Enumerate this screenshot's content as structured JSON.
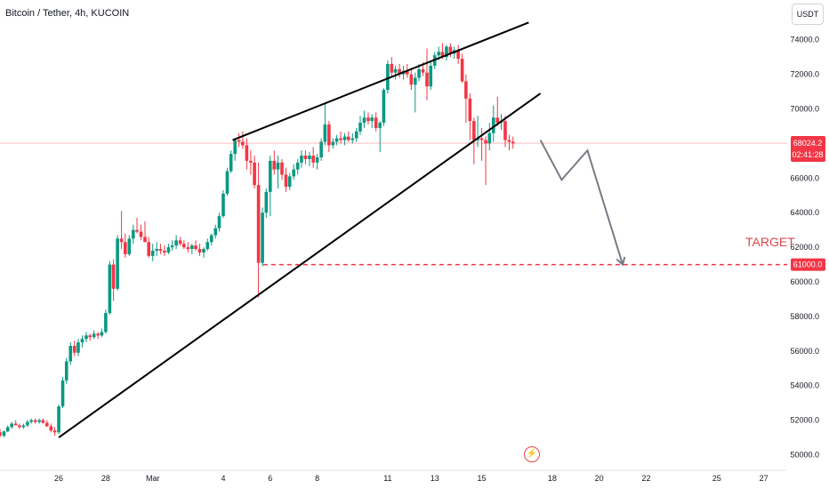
{
  "chart_data": {
    "type": "candlestick",
    "title": "Bitcoin / Tether, 4h, KUCOIN",
    "currency": "USDT",
    "y_ticks": [
      "74000.0",
      "72000.0",
      "70000.0",
      "68000.0",
      "66000.0",
      "64000.0",
      "62000.0",
      "60000.0",
      "58000.0",
      "56000.0",
      "54000.0",
      "52000.0",
      "50000.0"
    ],
    "y_tick_values": [
      74000,
      72000,
      70000,
      68000,
      66000,
      64000,
      62000,
      60000,
      58000,
      56000,
      54000,
      52000,
      50000
    ],
    "x_ticks": [
      {
        "label": "26",
        "day": 0
      },
      {
        "label": "28",
        "day": 2
      },
      {
        "label": "Mar",
        "day": 4
      },
      {
        "label": "4",
        "day": 7
      },
      {
        "label": "6",
        "day": 9
      },
      {
        "label": "8",
        "day": 11
      },
      {
        "label": "11",
        "day": 14
      },
      {
        "label": "13",
        "day": 16
      },
      {
        "label": "15",
        "day": 18
      },
      {
        "label": "18",
        "day": 21
      },
      {
        "label": "20",
        "day": 23
      },
      {
        "label": "22",
        "day": 25
      },
      {
        "label": "25",
        "day": 28
      },
      {
        "label": "27",
        "day": 30
      }
    ],
    "ylim": [
      49100,
      76300
    ],
    "xlim": [
      -2.5,
      31
    ],
    "current_price": {
      "value": "68024.2",
      "countdown": "02:41:28",
      "price": 68024.2,
      "color": "#f23645"
    },
    "target": {
      "label": "TARGET",
      "value": "61000.0",
      "price": 61000,
      "color": "#f23645"
    },
    "up_color": "#089981",
    "down_color": "#f23645",
    "candles": [
      [
        -2.5,
        51300,
        51500,
        51000,
        51100
      ],
      [
        -2.33,
        51100,
        51400,
        51000,
        51350
      ],
      [
        -2.17,
        51350,
        51700,
        51300,
        51600
      ],
      [
        -2.0,
        51600,
        51900,
        51500,
        51800
      ],
      [
        -1.83,
        51800,
        52000,
        51700,
        51700
      ],
      [
        -1.67,
        51700,
        51800,
        51500,
        51600
      ],
      [
        -1.5,
        51600,
        51800,
        51500,
        51700
      ],
      [
        -1.33,
        51700,
        52000,
        51600,
        51900
      ],
      [
        -1.17,
        51900,
        52100,
        51800,
        52000
      ],
      [
        -1.0,
        52000,
        52100,
        51800,
        51900
      ],
      [
        -0.83,
        51900,
        52100,
        51800,
        52000
      ],
      [
        -0.67,
        52000,
        52100,
        51800,
        51850
      ],
      [
        -0.5,
        51850,
        52000,
        51600,
        51650
      ],
      [
        -0.33,
        51650,
        51800,
        51300,
        51400
      ],
      [
        -0.17,
        51400,
        51600,
        51100,
        51300
      ],
      [
        0.0,
        51300,
        52900,
        51200,
        52800
      ],
      [
        0.17,
        52800,
        54500,
        52700,
        54300
      ],
      [
        0.33,
        54300,
        55600,
        54100,
        55400
      ],
      [
        0.5,
        55400,
        56500,
        55200,
        56300
      ],
      [
        0.67,
        56300,
        56600,
        55700,
        55900
      ],
      [
        0.83,
        55900,
        56700,
        55700,
        56500
      ],
      [
        1.0,
        56500,
        56900,
        56200,
        56700
      ],
      [
        1.17,
        56700,
        57100,
        56500,
        56900
      ],
      [
        1.33,
        56900,
        57000,
        56600,
        56800
      ],
      [
        1.5,
        56800,
        57200,
        56700,
        57000
      ],
      [
        1.67,
        57000,
        57100,
        56700,
        56900
      ],
      [
        1.83,
        56900,
        57300,
        56800,
        57100
      ],
      [
        2.0,
        57100,
        58400,
        57000,
        58200
      ],
      [
        2.17,
        58200,
        61200,
        58100,
        61000
      ],
      [
        2.33,
        61000,
        61300,
        58900,
        59600
      ],
      [
        2.5,
        59600,
        62700,
        59500,
        62500
      ],
      [
        2.67,
        62500,
        64100,
        61900,
        62300
      ],
      [
        2.83,
        62300,
        62800,
        61400,
        61600
      ],
      [
        3.0,
        61600,
        62700,
        61500,
        62500
      ],
      [
        3.17,
        62500,
        63300,
        62200,
        63000
      ],
      [
        3.33,
        63000,
        63700,
        62800,
        62900
      ],
      [
        3.5,
        62900,
        63300,
        62400,
        62600
      ],
      [
        3.67,
        62600,
        63500,
        62300,
        62300
      ],
      [
        3.83,
        62300,
        62600,
        61400,
        61500
      ],
      [
        4.0,
        61500,
        62200,
        61200,
        61800
      ],
      [
        4.17,
        61800,
        62300,
        61500,
        61900
      ],
      [
        4.33,
        61900,
        62200,
        61600,
        61800
      ],
      [
        4.5,
        61800,
        62100,
        61500,
        61700
      ],
      [
        4.67,
        61700,
        62200,
        61600,
        62000
      ],
      [
        4.83,
        62000,
        62400,
        61800,
        62100
      ],
      [
        5.0,
        62100,
        62700,
        61900,
        62400
      ],
      [
        5.17,
        62400,
        62600,
        62100,
        62200
      ],
      [
        5.33,
        62200,
        62400,
        61900,
        62000
      ],
      [
        5.5,
        62000,
        62300,
        61700,
        61900
      ],
      [
        5.67,
        61900,
        62200,
        61600,
        62100
      ],
      [
        5.83,
        62100,
        62400,
        61800,
        61900
      ],
      [
        6.0,
        61900,
        62200,
        61500,
        61700
      ],
      [
        6.17,
        61700,
        62000,
        61400,
        61900
      ],
      [
        6.33,
        61900,
        62500,
        61800,
        62300
      ],
      [
        6.5,
        62300,
        62800,
        62100,
        62700
      ],
      [
        6.67,
        62700,
        63300,
        62500,
        63100
      ],
      [
        6.83,
        63100,
        64000,
        62900,
        63800
      ],
      [
        7.0,
        63800,
        65300,
        63700,
        65100
      ],
      [
        7.17,
        65100,
        66600,
        65000,
        66400
      ],
      [
        7.33,
        66400,
        67600,
        66300,
        67400
      ],
      [
        7.5,
        67400,
        68300,
        67000,
        68200
      ],
      [
        7.67,
        68200,
        68600,
        67800,
        68100
      ],
      [
        7.83,
        68100,
        68700,
        67700,
        67900
      ],
      [
        8.0,
        67900,
        68300,
        66500,
        67000
      ],
      [
        8.17,
        67000,
        67600,
        66200,
        66900
      ],
      [
        8.33,
        66900,
        67300,
        65400,
        65600
      ],
      [
        8.5,
        65600,
        66900,
        59100,
        61100
      ],
      [
        8.67,
        61100,
        64300,
        60900,
        64000
      ],
      [
        8.83,
        64000,
        65400,
        63700,
        65200
      ],
      [
        9.0,
        65200,
        67300,
        63800,
        67000
      ],
      [
        9.17,
        67000,
        67600,
        66200,
        66500
      ],
      [
        9.33,
        66500,
        67300,
        65400,
        66900
      ],
      [
        9.5,
        66900,
        67100,
        65900,
        66200
      ],
      [
        9.67,
        66200,
        66600,
        65200,
        65500
      ],
      [
        9.83,
        65500,
        66300,
        65300,
        66100
      ],
      [
        10.0,
        66100,
        66800,
        65900,
        66500
      ],
      [
        10.17,
        66500,
        67100,
        66200,
        66900
      ],
      [
        10.33,
        66900,
        67600,
        66600,
        67300
      ],
      [
        10.5,
        67300,
        67600,
        66800,
        67100
      ],
      [
        10.67,
        67100,
        67500,
        66700,
        67300
      ],
      [
        10.83,
        67300,
        67800,
        66600,
        66900
      ],
      [
        11.0,
        66900,
        67400,
        66500,
        67200
      ],
      [
        11.17,
        67200,
        68300,
        67000,
        68100
      ],
      [
        11.33,
        68100,
        70300,
        67900,
        69100
      ],
      [
        11.5,
        69100,
        69300,
        67500,
        67900
      ],
      [
        11.67,
        67900,
        68300,
        67700,
        68100
      ],
      [
        11.83,
        68100,
        68500,
        67900,
        68300
      ],
      [
        12.0,
        68300,
        68700,
        68000,
        68200
      ],
      [
        12.17,
        68200,
        68600,
        67900,
        68400
      ],
      [
        12.33,
        68400,
        68700,
        68100,
        68200
      ],
      [
        12.5,
        68200,
        68600,
        68000,
        68300
      ],
      [
        12.67,
        68300,
        68900,
        68100,
        68700
      ],
      [
        12.83,
        68700,
        69600,
        68500,
        69200
      ],
      [
        13.0,
        69200,
        69900,
        68900,
        69500
      ],
      [
        13.17,
        69500,
        69800,
        69100,
        69300
      ],
      [
        13.33,
        69300,
        69700,
        68900,
        69500
      ],
      [
        13.5,
        69500,
        69800,
        68700,
        68900
      ],
      [
        13.67,
        68900,
        69300,
        67500,
        69200
      ],
      [
        13.83,
        69200,
        71200,
        69000,
        71100
      ],
      [
        14.0,
        71100,
        72800,
        70900,
        72600
      ],
      [
        14.17,
        72600,
        73000,
        71900,
        72100
      ],
      [
        14.33,
        72100,
        72500,
        71700,
        72300
      ],
      [
        14.5,
        72300,
        72600,
        71800,
        72000
      ],
      [
        14.67,
        72000,
        72500,
        71700,
        72200
      ],
      [
        14.83,
        72200,
        72600,
        71800,
        72000
      ],
      [
        15.0,
        72000,
        72300,
        71100,
        71400
      ],
      [
        15.17,
        71400,
        72100,
        69800,
        71800
      ],
      [
        15.33,
        71800,
        72600,
        71600,
        72300
      ],
      [
        15.5,
        72300,
        72700,
        71900,
        72100
      ],
      [
        15.67,
        72100,
        73500,
        70500,
        71300
      ],
      [
        15.83,
        71300,
        72700,
        71100,
        72500
      ],
      [
        16.0,
        72500,
        73300,
        72300,
        73100
      ],
      [
        16.17,
        73100,
        73600,
        72800,
        73300
      ],
      [
        16.33,
        73300,
        73800,
        72900,
        73000
      ],
      [
        16.5,
        73000,
        73700,
        72800,
        73600
      ],
      [
        16.67,
        73600,
        73800,
        73000,
        73200
      ],
      [
        16.83,
        73200,
        73600,
        72900,
        73400
      ],
      [
        17.0,
        73400,
        73700,
        72600,
        72900
      ],
      [
        17.17,
        72900,
        73200,
        71500,
        71600
      ],
      [
        17.33,
        71600,
        72000,
        69200,
        70600
      ],
      [
        17.5,
        70600,
        70900,
        68200,
        69300
      ],
      [
        17.67,
        69300,
        69500,
        66800,
        68200
      ],
      [
        17.83,
        68200,
        69600,
        67800,
        68300
      ],
      [
        18.0,
        68300,
        68900,
        67000,
        68200
      ],
      [
        18.17,
        68200,
        68400,
        65600,
        68000
      ],
      [
        18.33,
        68000,
        69200,
        67600,
        68600
      ],
      [
        18.5,
        68600,
        70200,
        68100,
        69500
      ],
      [
        18.67,
        69500,
        70700,
        69000,
        69200
      ],
      [
        18.83,
        69200,
        69700,
        68800,
        69300
      ],
      [
        19.0,
        69300,
        69600,
        67800,
        68200
      ],
      [
        19.17,
        68200,
        68500,
        67600,
        68100
      ],
      [
        19.33,
        68100,
        68400,
        67700,
        68000
      ]
    ],
    "annotations": {
      "upper_trendline": [
        [
          7.4,
          68200
        ],
        [
          20.0,
          75000
        ]
      ],
      "lower_trendline": [
        [
          0.0,
          51000
        ],
        [
          20.5,
          70900
        ]
      ],
      "projection_path": [
        [
          20.5,
          68200
        ],
        [
          21.4,
          65900
        ],
        [
          22.5,
          67600
        ],
        [
          24.0,
          61000
        ]
      ]
    }
  },
  "icons": {
    "bolt": "lightning-bolt-icon"
  }
}
